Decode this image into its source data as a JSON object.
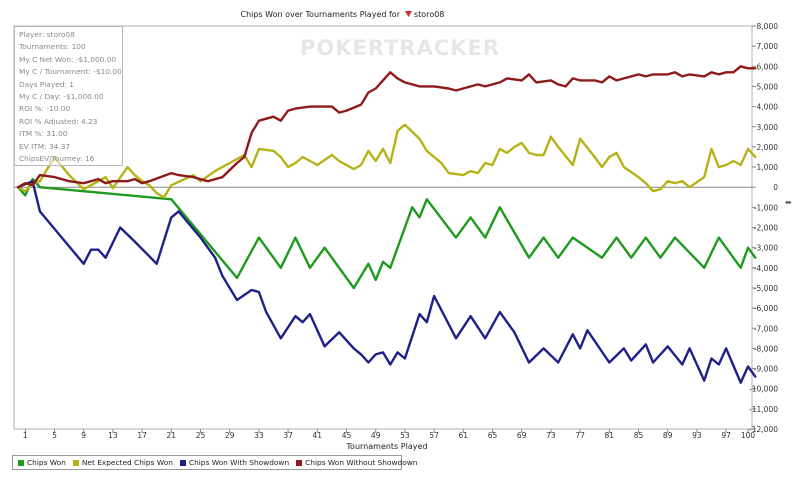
{
  "chart_data": {
    "type": "line",
    "title": "Chips Won over Tournaments Played for",
    "player_name": "storo08",
    "xlabel": "Tournaments Played",
    "ylabel": "",
    "xlim": [
      0,
      100
    ],
    "ylim": [
      -12000,
      8000
    ],
    "x_ticks": [
      1,
      5,
      9,
      13,
      17,
      21,
      25,
      29,
      33,
      37,
      41,
      45,
      49,
      53,
      57,
      61,
      65,
      69,
      73,
      77,
      81,
      85,
      89,
      93,
      97,
      100
    ],
    "y_ticks": [
      -12000,
      -11000,
      -10000,
      -9000,
      -8000,
      -7000,
      -6000,
      -5000,
      -4000,
      -3000,
      -2000,
      -1000,
      0,
      1000,
      2000,
      3000,
      4000,
      5000,
      6000,
      7000,
      8000
    ],
    "y_tick_labels": [
      "-12,000",
      "-11,000",
      "-10,000",
      "-9,000",
      "-8,000",
      "-7,000",
      "-6,000",
      "-5,000",
      "-4,000",
      "-3,000",
      "-2,000",
      "-1,000",
      "0",
      "1,000",
      "2,000",
      "3,000",
      "4,000",
      "5,000",
      "6,000",
      "7,000",
      "8,000"
    ],
    "y_axis_position": "right",
    "grid": false,
    "legend_placement": "bottom-left",
    "series": [
      {
        "name": "Chips Won",
        "color": "#1f9a1f",
        "points": [
          [
            0,
            0
          ],
          [
            1,
            -400
          ],
          [
            2,
            400
          ],
          [
            3,
            0
          ],
          [
            21,
            -600
          ],
          [
            30,
            -4500
          ],
          [
            33,
            -2500
          ],
          [
            36,
            -4000
          ],
          [
            38,
            -2500
          ],
          [
            40,
            -4000
          ],
          [
            42,
            -3000
          ],
          [
            46,
            -5000
          ],
          [
            48,
            -3800
          ],
          [
            49,
            -4600
          ],
          [
            50,
            -3700
          ],
          [
            51,
            -4000
          ],
          [
            54,
            -1000
          ],
          [
            55,
            -1500
          ],
          [
            56,
            -600
          ],
          [
            60,
            -2500
          ],
          [
            62,
            -1500
          ],
          [
            64,
            -2500
          ],
          [
            66,
            -1000
          ],
          [
            70,
            -3500
          ],
          [
            72,
            -2500
          ],
          [
            74,
            -3500
          ],
          [
            76,
            -2500
          ],
          [
            80,
            -3500
          ],
          [
            82,
            -2500
          ],
          [
            84,
            -3500
          ],
          [
            86,
            -2500
          ],
          [
            88,
            -3500
          ],
          [
            90,
            -2500
          ],
          [
            94,
            -4000
          ],
          [
            96,
            -2500
          ],
          [
            99,
            -4000
          ],
          [
            100,
            -3000
          ],
          [
            101,
            -3500
          ]
        ]
      },
      {
        "name": "Net Expected Chips Won",
        "color": "#b5b317",
        "points": [
          [
            0,
            0
          ],
          [
            1,
            -200
          ],
          [
            2,
            200
          ],
          [
            3,
            300
          ],
          [
            5,
            1500
          ],
          [
            7,
            600
          ],
          [
            9,
            -100
          ],
          [
            10,
            100
          ],
          [
            11,
            300
          ],
          [
            12,
            500
          ],
          [
            13,
            -50
          ],
          [
            15,
            1000
          ],
          [
            16,
            600
          ],
          [
            17,
            300
          ],
          [
            18,
            100
          ],
          [
            19,
            -300
          ],
          [
            20,
            -500
          ],
          [
            21,
            100
          ],
          [
            24,
            600
          ],
          [
            25,
            300
          ],
          [
            27,
            800
          ],
          [
            29,
            1200
          ],
          [
            31,
            1600
          ],
          [
            32,
            1000
          ],
          [
            33,
            1900
          ],
          [
            35,
            1800
          ],
          [
            36,
            1500
          ],
          [
            37,
            1000
          ],
          [
            38,
            1200
          ],
          [
            39,
            1500
          ],
          [
            41,
            1100
          ],
          [
            43,
            1600
          ],
          [
            44,
            1300
          ],
          [
            46,
            900
          ],
          [
            47,
            1100
          ],
          [
            48,
            1800
          ],
          [
            49,
            1300
          ],
          [
            50,
            1900
          ],
          [
            51,
            1200
          ],
          [
            52,
            2800
          ],
          [
            53,
            3100
          ],
          [
            55,
            2400
          ],
          [
            56,
            1800
          ],
          [
            58,
            1200
          ],
          [
            59,
            700
          ],
          [
            61,
            600
          ],
          [
            62,
            800
          ],
          [
            63,
            700
          ],
          [
            64,
            1200
          ],
          [
            65,
            1100
          ],
          [
            66,
            1900
          ],
          [
            67,
            1700
          ],
          [
            68,
            2000
          ],
          [
            69,
            2200
          ],
          [
            70,
            1700
          ],
          [
            71,
            1600
          ],
          [
            72,
            1600
          ],
          [
            73,
            2500
          ],
          [
            74,
            2000
          ],
          [
            76,
            1100
          ],
          [
            77,
            2400
          ],
          [
            79,
            1500
          ],
          [
            80,
            1000
          ],
          [
            81,
            1500
          ],
          [
            82,
            1700
          ],
          [
            83,
            1000
          ],
          [
            85,
            500
          ],
          [
            86,
            200
          ],
          [
            87,
            -200
          ],
          [
            88,
            -100
          ],
          [
            89,
            300
          ],
          [
            90,
            200
          ],
          [
            91,
            300
          ],
          [
            92,
            0
          ],
          [
            94,
            500
          ],
          [
            95,
            1900
          ],
          [
            96,
            1000
          ],
          [
            97,
            1100
          ],
          [
            98,
            1300
          ],
          [
            99,
            1100
          ],
          [
            100,
            1900
          ],
          [
            101,
            1500
          ]
        ]
      },
      {
        "name": "Chips Won With Showdown",
        "color": "#1d2188",
        "points": [
          [
            0,
            0
          ],
          [
            2,
            300
          ],
          [
            3,
            -1200
          ],
          [
            6,
            -2500
          ],
          [
            9,
            -3800
          ],
          [
            10,
            -3100
          ],
          [
            11,
            -3100
          ],
          [
            12,
            -3500
          ],
          [
            14,
            -2000
          ],
          [
            16,
            -2700
          ],
          [
            19,
            -3800
          ],
          [
            21,
            -1500
          ],
          [
            22,
            -1200
          ],
          [
            25,
            -2500
          ],
          [
            27,
            -3500
          ],
          [
            28,
            -4400
          ],
          [
            30,
            -5600
          ],
          [
            32,
            -5100
          ],
          [
            33,
            -5200
          ],
          [
            34,
            -6200
          ],
          [
            36,
            -7500
          ],
          [
            38,
            -6400
          ],
          [
            39,
            -6700
          ],
          [
            40,
            -6300
          ],
          [
            42,
            -7900
          ],
          [
            44,
            -7200
          ],
          [
            46,
            -8000
          ],
          [
            47,
            -8300
          ],
          [
            48,
            -8700
          ],
          [
            49,
            -8300
          ],
          [
            50,
            -8200
          ],
          [
            51,
            -8800
          ],
          [
            52,
            -8200
          ],
          [
            53,
            -8500
          ],
          [
            55,
            -6300
          ],
          [
            56,
            -6700
          ],
          [
            57,
            -5400
          ],
          [
            60,
            -7500
          ],
          [
            62,
            -6400
          ],
          [
            64,
            -7500
          ],
          [
            66,
            -6200
          ],
          [
            68,
            -7200
          ],
          [
            70,
            -8700
          ],
          [
            72,
            -8000
          ],
          [
            74,
            -8700
          ],
          [
            76,
            -7300
          ],
          [
            77,
            -8000
          ],
          [
            78,
            -7100
          ],
          [
            81,
            -8700
          ],
          [
            83,
            -8000
          ],
          [
            84,
            -8600
          ],
          [
            86,
            -7800
          ],
          [
            87,
            -8700
          ],
          [
            89,
            -7900
          ],
          [
            91,
            -8800
          ],
          [
            92,
            -8000
          ],
          [
            94,
            -9600
          ],
          [
            95,
            -8500
          ],
          [
            96,
            -8800
          ],
          [
            97,
            -8000
          ],
          [
            99,
            -9700
          ],
          [
            100,
            -8900
          ],
          [
            101,
            -9400
          ]
        ]
      },
      {
        "name": "Chips Won Without Showdown",
        "color": "#8f1a1a",
        "points": [
          [
            0,
            0
          ],
          [
            1,
            200
          ],
          [
            2,
            100
          ],
          [
            3,
            600
          ],
          [
            5,
            500
          ],
          [
            7,
            300
          ],
          [
            9,
            200
          ],
          [
            10,
            300
          ],
          [
            11,
            400
          ],
          [
            12,
            200
          ],
          [
            13,
            300
          ],
          [
            15,
            300
          ],
          [
            16,
            400
          ],
          [
            17,
            200
          ],
          [
            18,
            300
          ],
          [
            21,
            700
          ],
          [
            22,
            600
          ],
          [
            24,
            500
          ],
          [
            26,
            300
          ],
          [
            28,
            500
          ],
          [
            30,
            1200
          ],
          [
            31,
            1500
          ],
          [
            32,
            2700
          ],
          [
            33,
            3300
          ],
          [
            35,
            3500
          ],
          [
            36,
            3300
          ],
          [
            37,
            3800
          ],
          [
            38,
            3900
          ],
          [
            40,
            4000
          ],
          [
            43,
            4000
          ],
          [
            44,
            3700
          ],
          [
            45,
            3800
          ],
          [
            47,
            4100
          ],
          [
            48,
            4700
          ],
          [
            49,
            4900
          ],
          [
            50,
            5300
          ],
          [
            51,
            5700
          ],
          [
            52,
            5400
          ],
          [
            53,
            5200
          ],
          [
            55,
            5000
          ],
          [
            57,
            5000
          ],
          [
            59,
            4900
          ],
          [
            60,
            4800
          ],
          [
            63,
            5100
          ],
          [
            64,
            5000
          ],
          [
            66,
            5200
          ],
          [
            67,
            5400
          ],
          [
            69,
            5300
          ],
          [
            70,
            5600
          ],
          [
            71,
            5200
          ],
          [
            73,
            5300
          ],
          [
            74,
            5100
          ],
          [
            75,
            5000
          ],
          [
            76,
            5400
          ],
          [
            77,
            5300
          ],
          [
            79,
            5300
          ],
          [
            80,
            5200
          ],
          [
            81,
            5500
          ],
          [
            82,
            5300
          ],
          [
            83,
            5400
          ],
          [
            85,
            5600
          ],
          [
            86,
            5500
          ],
          [
            87,
            5600
          ],
          [
            89,
            5600
          ],
          [
            90,
            5700
          ],
          [
            91,
            5500
          ],
          [
            92,
            5600
          ],
          [
            94,
            5500
          ],
          [
            95,
            5700
          ],
          [
            96,
            5600
          ],
          [
            97,
            5700
          ],
          [
            98,
            5700
          ],
          [
            99,
            6000
          ],
          [
            100,
            5900
          ],
          [
            101,
            5900
          ]
        ]
      }
    ]
  },
  "stats": [
    "Player: storo08",
    "Tournaments: 100",
    "My C Net Won: -$1,000.00",
    "My C / Tournament: -$10.00",
    "Days Played: 1",
    "My C / Day: -$1,000.00",
    "ROI %: -10.00",
    "ROI % Adjusted: 4.23",
    "ITM %: 31.00",
    "EV ITM: 34.37",
    "ChipsEV/Tourney: 16"
  ],
  "watermark": "POKERTRACKER",
  "scroll_handle": "⬌"
}
